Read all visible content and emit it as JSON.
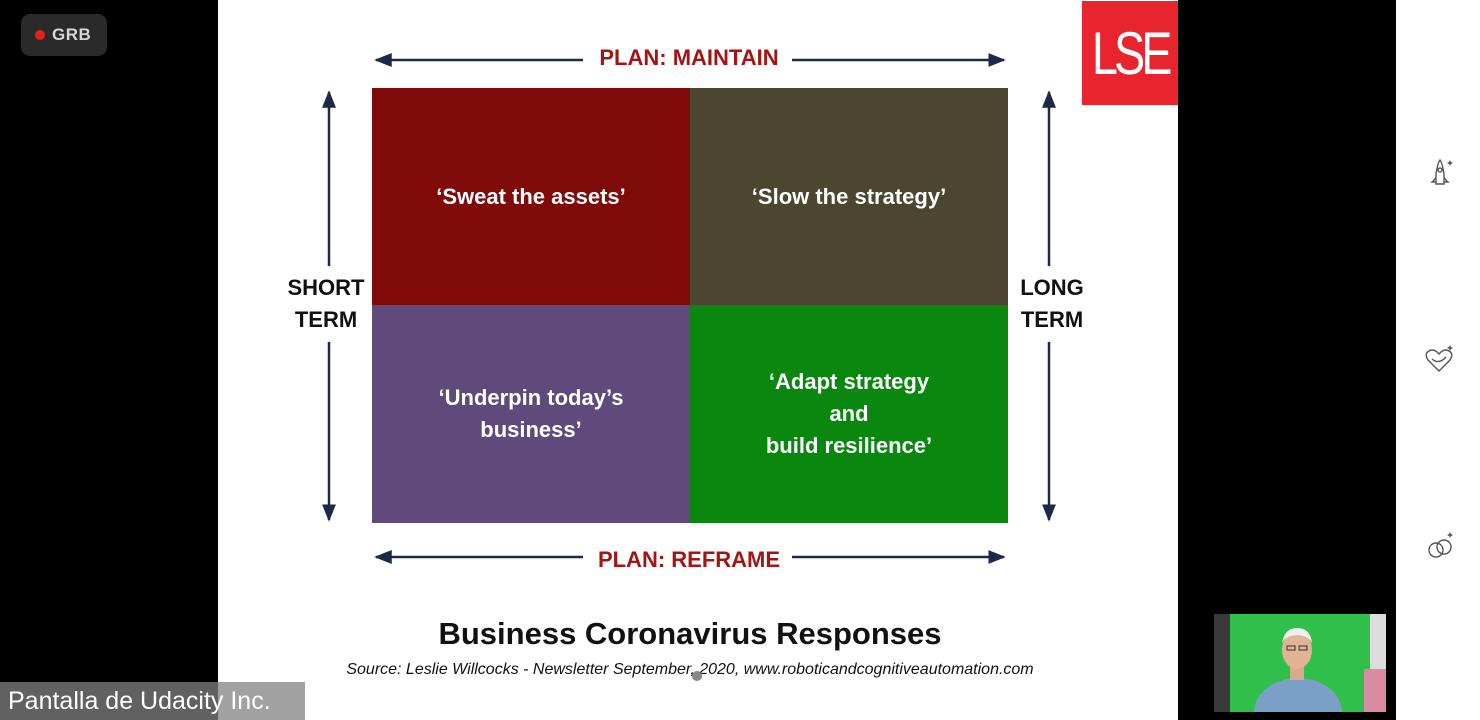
{
  "recording": {
    "label": "GRB",
    "dot_color": "#e02020"
  },
  "slide": {
    "logo": {
      "text": "LSE",
      "color": "#e8242f"
    },
    "axis_labels": {
      "top": "PLAN: MAINTAIN",
      "bottom": "PLAN: REFRAME",
      "left": "SHORT\nTERM",
      "right": "LONG\nTERM"
    },
    "axis_label_color_plan": "#a31515",
    "axis_label_color_term": "#111111",
    "quadrants": [
      {
        "text": "‘Sweat the assets’",
        "color": "#7f0a0a"
      },
      {
        "text": "‘Slow the strategy’",
        "color": "#4a4630"
      },
      {
        "text": "‘Underpin today’s\nbusiness’",
        "color": "#604a7b"
      },
      {
        "text": "‘Adapt strategy\nand\nbuild resilience’",
        "color": "#0a870f"
      }
    ],
    "title": "Business Coronavirus Responses",
    "source": "Source: Leslie Willcocks - Newsletter September, 2020, www.roboticandcognitiveautomation.com"
  },
  "presenter": {
    "label": "Pantalla de Udacity Inc."
  },
  "sidebar": {
    "icons": [
      "rocket-icon",
      "heart-icon",
      "rings-icon"
    ]
  }
}
